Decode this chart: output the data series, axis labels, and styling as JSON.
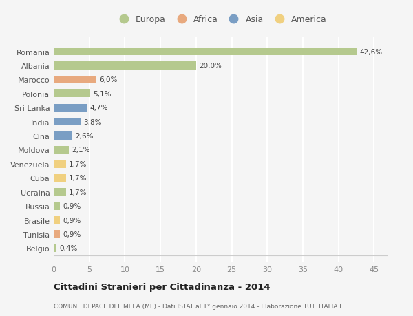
{
  "countries": [
    "Romania",
    "Albania",
    "Marocco",
    "Polonia",
    "Sri Lanka",
    "India",
    "Cina",
    "Moldova",
    "Venezuela",
    "Cuba",
    "Ucraina",
    "Russia",
    "Brasile",
    "Tunisia",
    "Belgio"
  ],
  "values": [
    42.6,
    20.0,
    6.0,
    5.1,
    4.7,
    3.8,
    2.6,
    2.1,
    1.7,
    1.7,
    1.7,
    0.9,
    0.9,
    0.9,
    0.4
  ],
  "labels": [
    "42,6%",
    "20,0%",
    "6,0%",
    "5,1%",
    "4,7%",
    "3,8%",
    "2,6%",
    "2,1%",
    "1,7%",
    "1,7%",
    "1,7%",
    "0,9%",
    "0,9%",
    "0,9%",
    "0,4%"
  ],
  "continents": [
    "Europa",
    "Europa",
    "Africa",
    "Europa",
    "Asia",
    "Asia",
    "Asia",
    "Europa",
    "America",
    "America",
    "Europa",
    "Europa",
    "America",
    "Africa",
    "Europa"
  ],
  "colors": {
    "Europa": "#b5c98e",
    "Africa": "#e8a97e",
    "Asia": "#7a9ec4",
    "America": "#f0d080"
  },
  "title": "Cittadini Stranieri per Cittadinanza - 2014",
  "subtitle": "COMUNE DI PACE DEL MELA (ME) - Dati ISTAT al 1° gennaio 2014 - Elaborazione TUTTITALIA.IT",
  "xlim": [
    0,
    47
  ],
  "xticks": [
    0,
    5,
    10,
    15,
    20,
    25,
    30,
    35,
    40,
    45
  ],
  "bg_color": "#f5f5f5",
  "grid_color": "#ffffff",
  "bar_height": 0.55,
  "legend_order": [
    "Europa",
    "Africa",
    "Asia",
    "America"
  ]
}
